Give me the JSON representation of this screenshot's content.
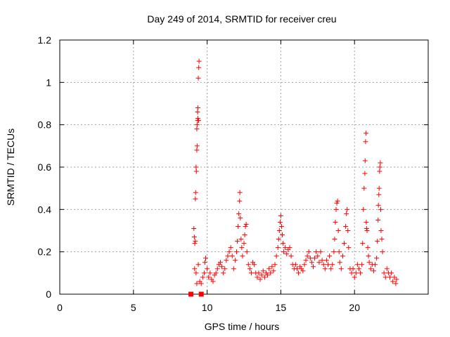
{
  "chart_data": {
    "type": "scatter",
    "title": "Day 249 of 2014, SRMTID for receiver creu",
    "xlabel": "GPS time / hours",
    "ylabel": "SRMTID / TECUs",
    "xlim": [
      0,
      25
    ],
    "ylim": [
      0,
      1.2
    ],
    "x_ticks": [
      0,
      5,
      10,
      15,
      20
    ],
    "y_ticks": [
      0,
      0.2,
      0.4,
      0.6,
      0.8,
      1,
      1.2
    ],
    "x_tick_labels": [
      "0",
      "5",
      "10",
      "15",
      "20"
    ],
    "y_tick_labels": [
      "0",
      "0.2",
      "0.4",
      "0.6",
      "0.8",
      "1",
      "1.2"
    ],
    "grid": true,
    "series_color": "#ff0000",
    "series": [
      {
        "name": "SRMTID",
        "marker": "plus",
        "points": [
          [
            9.1,
            0.31
          ],
          [
            9.13,
            0.27
          ],
          [
            9.16,
            0.24
          ],
          [
            9.2,
            0.45
          ],
          [
            9.22,
            0.48
          ],
          [
            9.25,
            0.6
          ],
          [
            9.27,
            0.58
          ],
          [
            9.3,
            0.68
          ],
          [
            9.32,
            0.7
          ],
          [
            9.3,
            0.78
          ],
          [
            9.32,
            0.8
          ],
          [
            9.35,
            0.82
          ],
          [
            9.37,
            0.83
          ],
          [
            9.35,
            0.86
          ],
          [
            9.37,
            0.88
          ],
          [
            9.4,
            1.02
          ],
          [
            9.43,
            1.07
          ],
          [
            9.45,
            1.1
          ],
          [
            9.42,
            0.82
          ],
          [
            9.2,
            0.25
          ],
          [
            9.15,
            0.12
          ],
          [
            9.25,
            0.1
          ],
          [
            9.3,
            0.05
          ],
          [
            9.4,
            0.14
          ],
          [
            9.5,
            0.06
          ],
          [
            9.6,
            0.05
          ],
          [
            9.7,
            0.08
          ],
          [
            9.8,
            0.1
          ],
          [
            9.85,
            0.15
          ],
          [
            9.9,
            0.17
          ],
          [
            10.0,
            0.12
          ],
          [
            10.1,
            0.08
          ],
          [
            10.2,
            0.1
          ],
          [
            10.3,
            0.07
          ],
          [
            10.4,
            0.06
          ],
          [
            10.5,
            0.09
          ],
          [
            10.6,
            0.1
          ],
          [
            10.7,
            0.12
          ],
          [
            10.8,
            0.14
          ],
          [
            10.9,
            0.15
          ],
          [
            11.0,
            0.13
          ],
          [
            11.1,
            0.1
          ],
          [
            11.2,
            0.12
          ],
          [
            11.3,
            0.16
          ],
          [
            11.4,
            0.18
          ],
          [
            11.5,
            0.2
          ],
          [
            11.6,
            0.22
          ],
          [
            11.7,
            0.18
          ],
          [
            11.8,
            0.12
          ],
          [
            11.9,
            0.16
          ],
          [
            12.0,
            0.2
          ],
          [
            12.05,
            0.25
          ],
          [
            12.1,
            0.32
          ],
          [
            12.15,
            0.38
          ],
          [
            12.2,
            0.44
          ],
          [
            12.22,
            0.48
          ],
          [
            12.25,
            0.36
          ],
          [
            12.3,
            0.26
          ],
          [
            12.35,
            0.22
          ],
          [
            12.4,
            0.18
          ],
          [
            12.5,
            0.24
          ],
          [
            12.55,
            0.28
          ],
          [
            12.6,
            0.32
          ],
          [
            12.65,
            0.33
          ],
          [
            12.7,
            0.2
          ],
          [
            12.8,
            0.14
          ],
          [
            12.9,
            0.12
          ],
          [
            13.0,
            0.1
          ],
          [
            13.1,
            0.15
          ],
          [
            13.2,
            0.14
          ],
          [
            13.3,
            0.1
          ],
          [
            13.4,
            0.08
          ],
          [
            13.5,
            0.1
          ],
          [
            13.6,
            0.07
          ],
          [
            13.7,
            0.09
          ],
          [
            13.8,
            0.11
          ],
          [
            13.9,
            0.08
          ],
          [
            14.0,
            0.1
          ],
          [
            14.1,
            0.09
          ],
          [
            14.2,
            0.12
          ],
          [
            14.3,
            0.1
          ],
          [
            14.4,
            0.13
          ],
          [
            14.5,
            0.11
          ],
          [
            14.6,
            0.14
          ],
          [
            14.7,
            0.18
          ],
          [
            14.8,
            0.22
          ],
          [
            14.85,
            0.26
          ],
          [
            14.9,
            0.3
          ],
          [
            14.95,
            0.34
          ],
          [
            15.0,
            0.37
          ],
          [
            15.05,
            0.32
          ],
          [
            15.1,
            0.28
          ],
          [
            15.15,
            0.24
          ],
          [
            15.2,
            0.2
          ],
          [
            15.3,
            0.22
          ],
          [
            15.4,
            0.19
          ],
          [
            15.5,
            0.21
          ],
          [
            15.6,
            0.22
          ],
          [
            15.7,
            0.18
          ],
          [
            15.8,
            0.14
          ],
          [
            15.9,
            0.12
          ],
          [
            16.0,
            0.14
          ],
          [
            16.1,
            0.12
          ],
          [
            16.2,
            0.1
          ],
          [
            16.3,
            0.13
          ],
          [
            16.4,
            0.12
          ],
          [
            16.5,
            0.11
          ],
          [
            16.6,
            0.14
          ],
          [
            16.7,
            0.16
          ],
          [
            16.8,
            0.18
          ],
          [
            16.9,
            0.2
          ],
          [
            17.0,
            0.17
          ],
          [
            17.1,
            0.15
          ],
          [
            17.2,
            0.13
          ],
          [
            17.3,
            0.17
          ],
          [
            17.4,
            0.2
          ],
          [
            17.5,
            0.18
          ],
          [
            17.6,
            0.15
          ],
          [
            17.7,
            0.2
          ],
          [
            17.8,
            0.16
          ],
          [
            17.9,
            0.14
          ],
          [
            18.0,
            0.12
          ],
          [
            18.1,
            0.16
          ],
          [
            18.2,
            0.14
          ],
          [
            18.3,
            0.18
          ],
          [
            18.4,
            0.12
          ],
          [
            18.5,
            0.14
          ],
          [
            18.6,
            0.2
          ],
          [
            18.65,
            0.26
          ],
          [
            18.7,
            0.34
          ],
          [
            18.75,
            0.4
          ],
          [
            18.8,
            0.43
          ],
          [
            18.85,
            0.44
          ],
          [
            18.9,
            0.3
          ],
          [
            18.95,
            0.2
          ],
          [
            19.0,
            0.15
          ],
          [
            19.1,
            0.12
          ],
          [
            19.2,
            0.18
          ],
          [
            19.3,
            0.24
          ],
          [
            19.4,
            0.32
          ],
          [
            19.45,
            0.38
          ],
          [
            19.5,
            0.4
          ],
          [
            19.55,
            0.3
          ],
          [
            19.6,
            0.22
          ],
          [
            19.7,
            0.12
          ],
          [
            19.8,
            0.1
          ],
          [
            19.9,
            0.12
          ],
          [
            20.0,
            0.08
          ],
          [
            20.1,
            0.1
          ],
          [
            20.2,
            0.14
          ],
          [
            20.3,
            0.12
          ],
          [
            20.4,
            0.1
          ],
          [
            20.5,
            0.14
          ],
          [
            20.55,
            0.24
          ],
          [
            20.6,
            0.4
          ],
          [
            20.65,
            0.5
          ],
          [
            20.7,
            0.57
          ],
          [
            20.72,
            0.63
          ],
          [
            20.75,
            0.72
          ],
          [
            20.78,
            0.76
          ],
          [
            20.8,
            0.34
          ],
          [
            20.82,
            0.31
          ],
          [
            20.85,
            0.3
          ],
          [
            20.9,
            0.22
          ],
          [
            20.95,
            0.18
          ],
          [
            21.0,
            0.15
          ],
          [
            21.1,
            0.12
          ],
          [
            21.2,
            0.14
          ],
          [
            21.3,
            0.11
          ],
          [
            21.4,
            0.14
          ],
          [
            21.5,
            0.17
          ],
          [
            21.55,
            0.25
          ],
          [
            21.6,
            0.35
          ],
          [
            21.62,
            0.42
          ],
          [
            21.65,
            0.47
          ],
          [
            21.67,
            0.5
          ],
          [
            21.7,
            0.58
          ],
          [
            21.72,
            0.6
          ],
          [
            21.75,
            0.62
          ],
          [
            21.78,
            0.4
          ],
          [
            21.8,
            0.3
          ],
          [
            21.85,
            0.26
          ],
          [
            21.9,
            0.2
          ],
          [
            22.0,
            0.1
          ],
          [
            22.1,
            0.08
          ],
          [
            22.2,
            0.12
          ],
          [
            22.3,
            0.1
          ],
          [
            22.4,
            0.08
          ],
          [
            22.5,
            0.1
          ],
          [
            22.6,
            0.06
          ],
          [
            22.7,
            0.08
          ],
          [
            22.8,
            0.05
          ],
          [
            22.85,
            0.07
          ]
        ]
      },
      {
        "name": "zero-markers",
        "marker": "square",
        "points": [
          [
            8.9,
            0.0
          ],
          [
            9.6,
            0.0
          ]
        ]
      }
    ]
  }
}
